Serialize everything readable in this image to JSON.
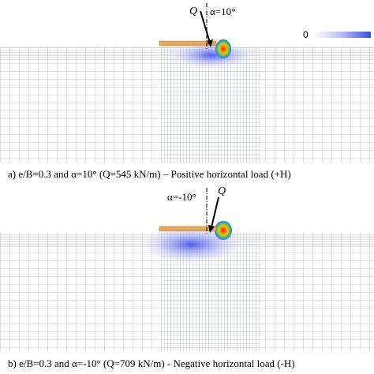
{
  "panel_a": {
    "load_label": "Q",
    "angle_label": "α=10°",
    "colorbar_min": "0",
    "caption": "a) e/B=0.3 and α=10° (Q=545 kN/m) – Positive horizontal load (+H)"
  },
  "panel_b": {
    "load_label": "Q",
    "angle_label": "α=-10°",
    "caption": "b) e/B=0.3 and α=-10° (Q=709 kN/m) - Negative horizontal load (-H)"
  }
}
